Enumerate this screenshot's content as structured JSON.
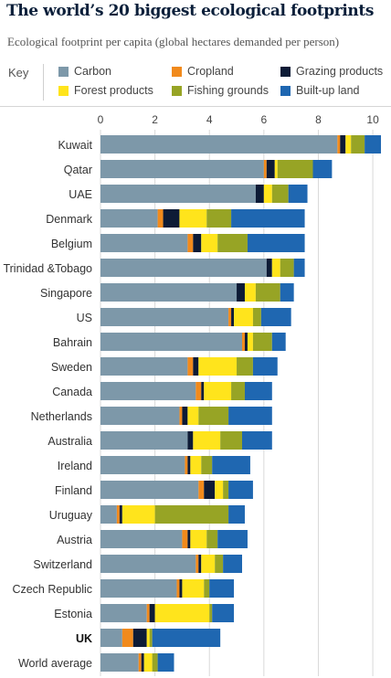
{
  "header": {
    "title": "The world’s 20 biggest ecological footprints",
    "subtitle": "Ecological footprint per capita (global hectares demanded per person)",
    "key_label": "Key"
  },
  "chart_data": {
    "type": "bar",
    "orientation": "horizontal",
    "stacked": true,
    "title": "The world’s 20 biggest ecological footprints",
    "subtitle": "Ecological footprint per capita (global hectares demanded per person)",
    "xlabel": "",
    "ylabel": "",
    "xlim": [
      0,
      10.4
    ],
    "xticks": [
      0,
      2,
      4,
      6,
      8,
      10
    ],
    "grid": "vertical",
    "legend_position": "top",
    "bold_categories": [
      "UK"
    ],
    "categories": [
      "Kuwait",
      "Qatar",
      "UAE",
      "Denmark",
      "Belgium",
      "Trinidad &Tobago",
      "Singapore",
      "US",
      "Bahrain",
      "Sweden",
      "Canada",
      "Netherlands",
      "Australia",
      "Ireland",
      "Finland",
      "Uruguay",
      "Austria",
      "Switzerland",
      "Czech Republic",
      "Estonia",
      "UK",
      "World average"
    ],
    "series": [
      {
        "name": "Carbon",
        "color": "#7d98a9",
        "values": [
          8.7,
          6.0,
          5.7,
          2.1,
          3.2,
          6.1,
          5.0,
          4.7,
          5.2,
          3.2,
          3.5,
          2.9,
          3.2,
          3.1,
          3.6,
          0.6,
          3.0,
          3.5,
          2.8,
          1.7,
          0.8,
          1.4
        ]
      },
      {
        "name": "Cropland",
        "color": "#f18a1c",
        "values": [
          0.1,
          0.1,
          0.0,
          0.2,
          0.2,
          0.0,
          0.0,
          0.1,
          0.1,
          0.2,
          0.2,
          0.1,
          0.0,
          0.1,
          0.2,
          0.1,
          0.2,
          0.1,
          0.1,
          0.1,
          0.4,
          0.1
        ]
      },
      {
        "name": "Grazing products",
        "color": "#0d1b36",
        "values": [
          0.2,
          0.3,
          0.3,
          0.6,
          0.3,
          0.2,
          0.3,
          0.1,
          0.1,
          0.2,
          0.1,
          0.2,
          0.2,
          0.1,
          0.4,
          0.1,
          0.1,
          0.1,
          0.1,
          0.2,
          0.5,
          0.1
        ]
      },
      {
        "name": "Forest products",
        "color": "#ffe41c",
        "values": [
          0.2,
          0.1,
          0.3,
          1.0,
          0.6,
          0.3,
          0.4,
          0.7,
          0.2,
          1.4,
          1.0,
          0.4,
          1.0,
          0.4,
          0.3,
          1.2,
          0.6,
          0.5,
          0.8,
          2.0,
          0.1,
          0.3
        ]
      },
      {
        "name": "Fishing grounds",
        "color": "#97a425",
        "values": [
          0.5,
          1.3,
          0.6,
          0.9,
          1.1,
          0.5,
          0.9,
          0.3,
          0.7,
          0.6,
          0.5,
          1.1,
          0.8,
          0.4,
          0.2,
          2.7,
          0.4,
          0.3,
          0.2,
          0.1,
          0.1,
          0.2
        ]
      },
      {
        "name": "Built-up land",
        "color": "#1f67b1",
        "values": [
          0.6,
          0.7,
          0.7,
          2.7,
          2.1,
          0.4,
          0.5,
          1.1,
          0.5,
          0.9,
          1.0,
          1.6,
          1.1,
          1.4,
          0.9,
          0.6,
          1.1,
          0.7,
          0.9,
          0.8,
          2.5,
          0.6
        ]
      }
    ]
  }
}
